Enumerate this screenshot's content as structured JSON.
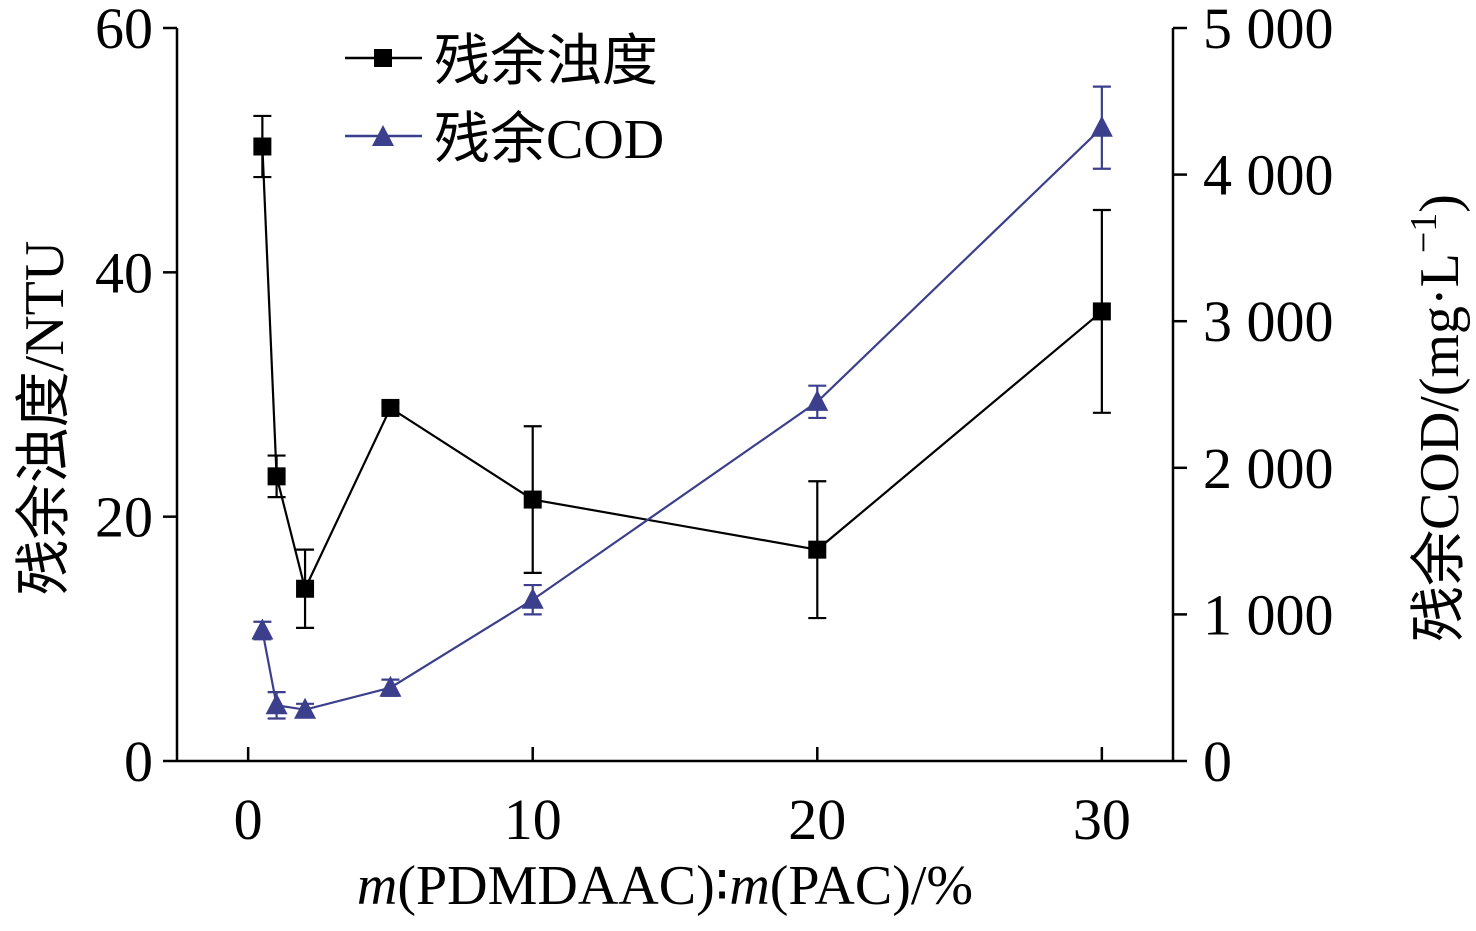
{
  "chart_data": {
    "type": "line",
    "x": [
      0.5,
      1,
      2,
      5,
      10,
      20,
      30
    ],
    "xlabel_parts": {
      "var1": "m",
      "text1": "(PDMDAAC)∶",
      "var2": "m",
      "text2": "(PAC)/%"
    },
    "xlim": [
      -2.5,
      32.5
    ],
    "xticks": [
      0,
      10,
      20,
      30
    ],
    "y_left": {
      "label": "残余浊度/NTU",
      "lim": [
        0,
        60
      ],
      "ticks": [
        0,
        20,
        40,
        60
      ]
    },
    "y_right": {
      "label_main": "残余COD/(mg·L",
      "label_sup": "−1",
      "label_close": ")",
      "lim": [
        0,
        5000
      ],
      "ticks": [
        0,
        1000,
        2000,
        3000,
        4000,
        5000
      ],
      "tick_labels": [
        "0",
        "1 000",
        "2 000",
        "3 000",
        "4 000",
        "5 000"
      ]
    },
    "series": [
      {
        "name": "残余浊度",
        "axis": "left",
        "marker": "square",
        "color": "#000000",
        "values": [
          50.3,
          23.3,
          14.1,
          28.9,
          21.4,
          17.3,
          36.8
        ],
        "errors": [
          2.5,
          1.7,
          3.2,
          0.4,
          6.0,
          5.6,
          8.3
        ]
      },
      {
        "name": "残余COD",
        "axis": "right",
        "marker": "triangle",
        "color": "#3b3f8c",
        "values": [
          890,
          380,
          350,
          500,
          1100,
          2450,
          4320
        ],
        "errors": [
          60,
          90,
          40,
          55,
          100,
          110,
          280
        ]
      }
    ],
    "legend_position": "top-left",
    "grid": false
  }
}
